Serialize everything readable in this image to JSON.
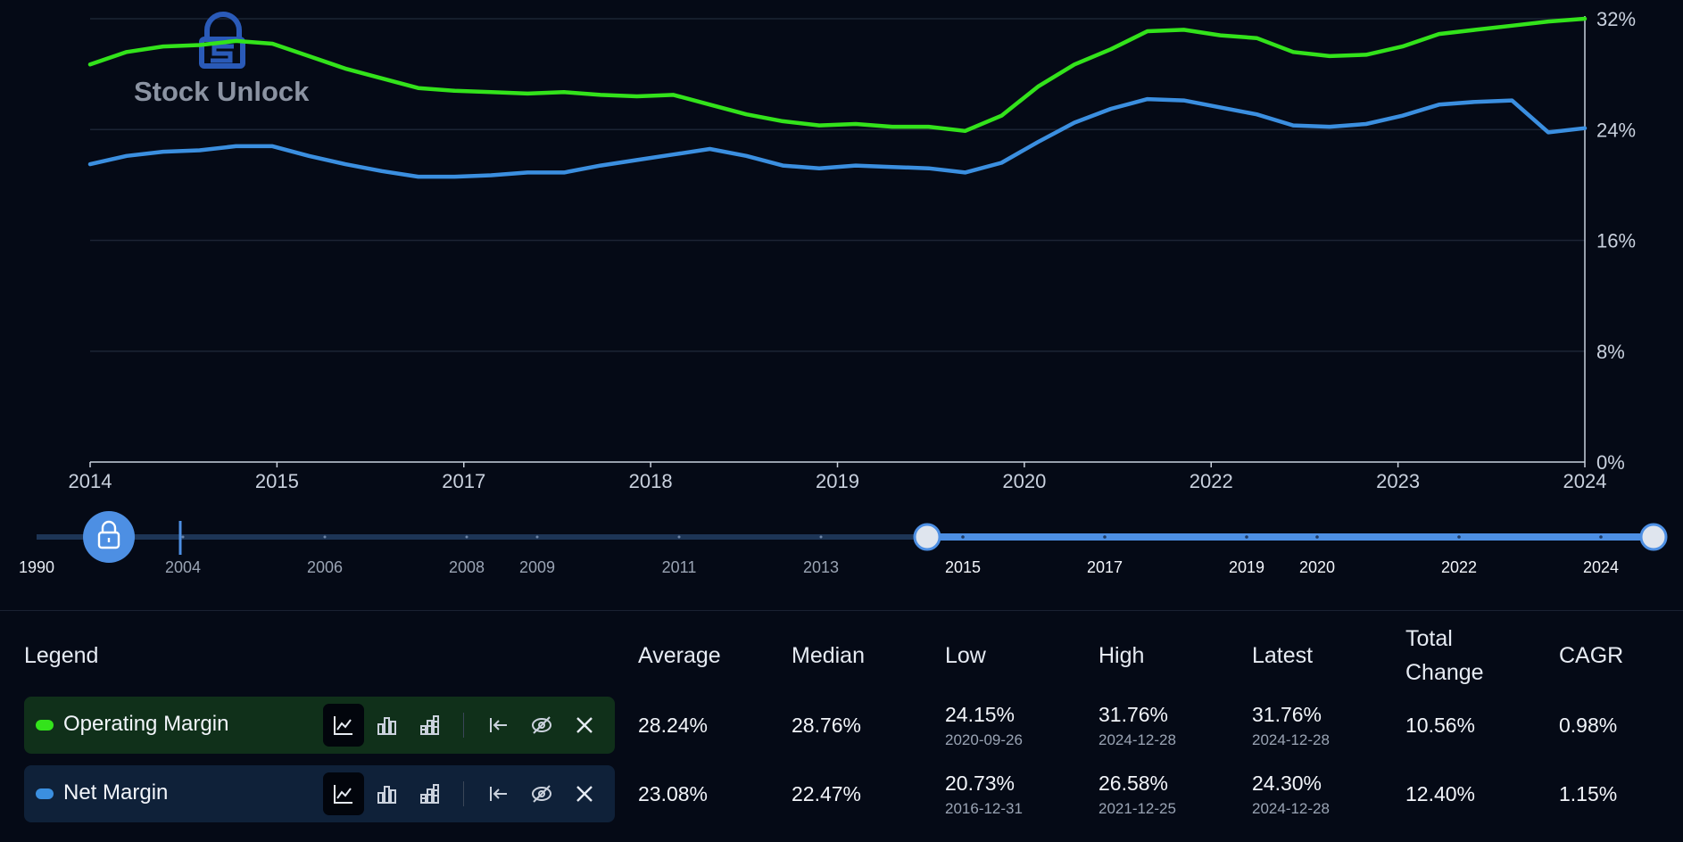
{
  "watermark": {
    "text": "Stock Unlock"
  },
  "chart_data": {
    "type": "line",
    "y_ticks": [
      "32%",
      "24%",
      "16%",
      "8%",
      "0%"
    ],
    "ylim": [
      0,
      32
    ],
    "x_ticks": [
      "2014",
      "2015",
      "2017",
      "2018",
      "2019",
      "2020",
      "2022",
      "2023",
      "2024"
    ],
    "grid": true,
    "series": [
      {
        "name": "Operating Margin",
        "color": "#33e31b",
        "values": [
          28.7,
          29.6,
          30.0,
          30.1,
          30.4,
          30.2,
          29.3,
          28.4,
          27.7,
          27.0,
          26.8,
          26.7,
          26.6,
          26.7,
          26.5,
          26.4,
          26.5,
          25.8,
          25.1,
          24.6,
          24.3,
          24.4,
          24.2,
          24.2,
          23.9,
          25.0,
          27.1,
          28.7,
          29.8,
          31.1,
          31.2,
          30.8,
          30.6,
          29.6,
          29.3,
          29.4,
          30.0,
          30.9,
          31.2,
          31.5,
          31.8,
          32.0
        ]
      },
      {
        "name": "Net Margin",
        "color": "#3b8fe0",
        "values": [
          21.5,
          22.1,
          22.4,
          22.5,
          22.8,
          22.8,
          22.1,
          21.5,
          21.0,
          20.6,
          20.6,
          20.7,
          20.9,
          20.9,
          21.4,
          21.8,
          22.2,
          22.6,
          22.1,
          21.4,
          21.2,
          21.4,
          21.3,
          21.2,
          20.9,
          21.6,
          23.1,
          24.5,
          25.5,
          26.2,
          26.1,
          25.6,
          25.1,
          24.3,
          24.2,
          24.4,
          25.0,
          25.8,
          26.0,
          26.1,
          23.8,
          24.1
        ]
      }
    ]
  },
  "slider": {
    "labels_dim": [
      "1990",
      "2004",
      "2006",
      "2008",
      "2009",
      "2011",
      "2013"
    ],
    "labels_bright": [
      "2015",
      "2017",
      "2019",
      "2020",
      "2022",
      "2024"
    ],
    "lock_icon": "lock-icon"
  },
  "stats": {
    "headers": {
      "legend": "Legend",
      "average": "Average",
      "median": "Median",
      "low": "Low",
      "high": "High",
      "latest": "Latest",
      "total_change_1": "Total",
      "total_change_2": "Change",
      "cagr": "CAGR"
    },
    "rows": [
      {
        "name": "Operating Margin",
        "color": "#33e31b",
        "average": "28.24%",
        "median": "28.76%",
        "low": "24.15%",
        "low_date": "2020-09-26",
        "high": "31.76%",
        "high_date": "2024-12-28",
        "latest": "31.76%",
        "latest_date": "2024-12-28",
        "total_change": "10.56%",
        "cagr": "0.98%"
      },
      {
        "name": "Net Margin",
        "color": "#3b8fe0",
        "average": "23.08%",
        "median": "22.47%",
        "low": "20.73%",
        "low_date": "2016-12-31",
        "high": "26.58%",
        "high_date": "2021-12-25",
        "latest": "24.30%",
        "latest_date": "2024-12-28",
        "total_change": "12.40%",
        "cagr": "1.15%"
      }
    ],
    "toolbar_icons": [
      "line-chart-icon",
      "bar-chart-icon",
      "stacked-bar-icon",
      "align-left-icon",
      "hide-icon",
      "close-icon"
    ]
  }
}
